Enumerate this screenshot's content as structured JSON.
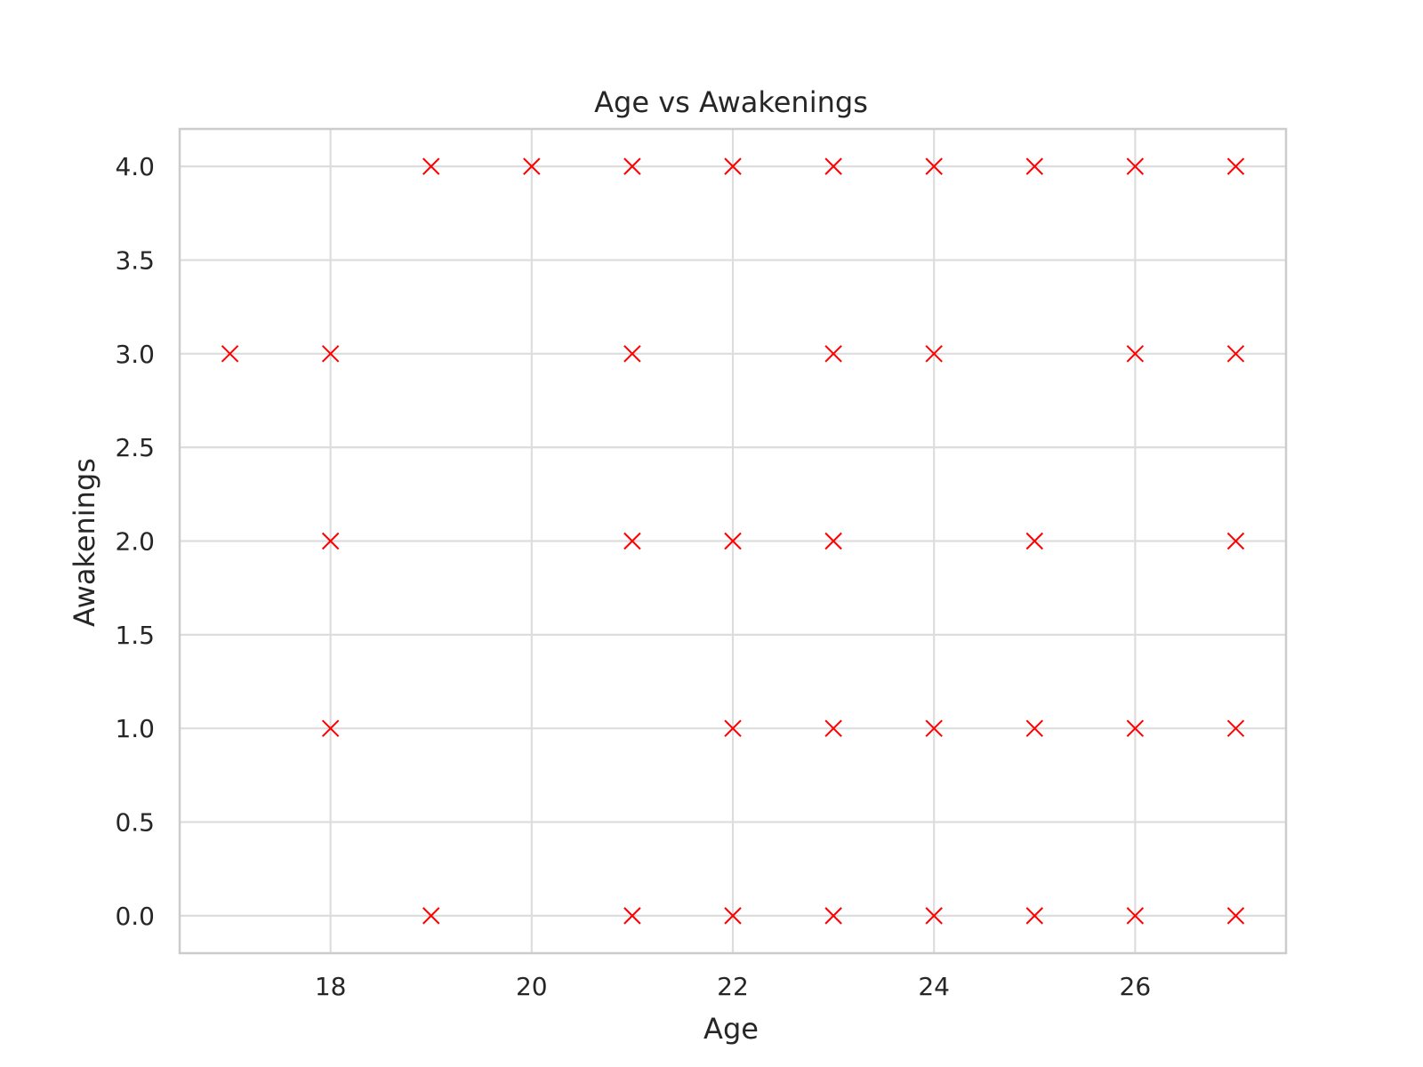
{
  "chart_data": {
    "type": "scatter",
    "title": "Age vs Awakenings",
    "xlabel": "Age",
    "ylabel": "Awakenings",
    "xlim": [
      16.5,
      27.5
    ],
    "ylim": [
      -0.2,
      4.2
    ],
    "xticks": [
      18,
      20,
      22,
      24,
      26
    ],
    "xtick_labels": [
      "18",
      "20",
      "22",
      "24",
      "26"
    ],
    "yticks": [
      0,
      0.5,
      1,
      1.5,
      2,
      2.5,
      3,
      3.5,
      4
    ],
    "ytick_labels": [
      "0.0",
      "0.5",
      "1.0",
      "1.5",
      "2.0",
      "2.5",
      "3.0",
      "3.5",
      "4.0"
    ],
    "grid": true,
    "marker": "x",
    "marker_color": "#ff0000",
    "series": [
      {
        "x": [
          17,
          18,
          18,
          18,
          19,
          19,
          20,
          21,
          21,
          21,
          21,
          22,
          22,
          22,
          22,
          23,
          23,
          23,
          23,
          23,
          24,
          24,
          24,
          24,
          25,
          25,
          25,
          25,
          26,
          26,
          26,
          26,
          27,
          27,
          27,
          27,
          27
        ],
        "y": [
          3,
          3,
          2,
          1,
          4,
          0,
          4,
          4,
          3,
          2,
          0,
          4,
          2,
          1,
          0,
          4,
          3,
          2,
          1,
          0,
          4,
          3,
          1,
          0,
          4,
          2,
          1,
          0,
          4,
          3,
          1,
          0,
          4,
          3,
          2,
          1,
          0
        ]
      }
    ]
  }
}
